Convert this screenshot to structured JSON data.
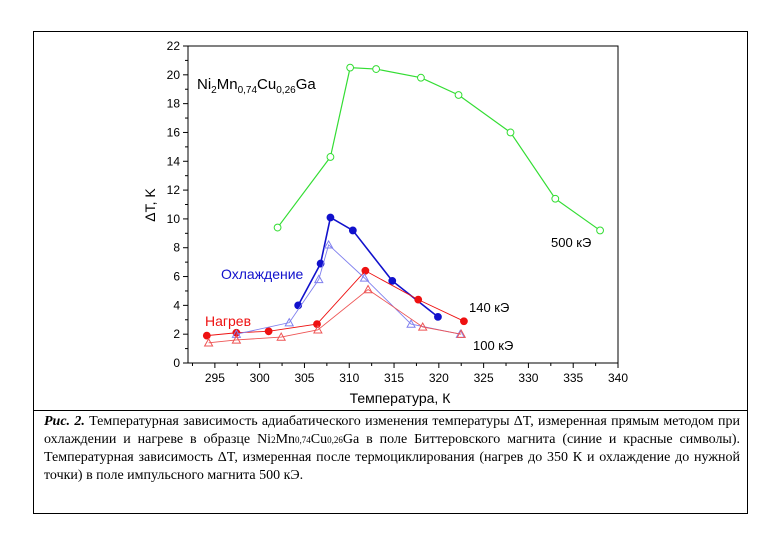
{
  "chart_data": {
    "type": "line",
    "xlabel": "Температура, К",
    "ylabel": "ΔT, K",
    "xlim": [
      292,
      340
    ],
    "ylim": [
      0,
      22
    ],
    "xticks": [
      295,
      300,
      305,
      310,
      315,
      320,
      325,
      330,
      335,
      340
    ],
    "yticks": [
      0,
      2,
      4,
      6,
      8,
      10,
      12,
      14,
      16,
      18,
      20,
      22
    ],
    "grid": false,
    "formula": {
      "base": "Ni",
      "parts": [
        {
          "t": "2",
          "sub": true
        },
        {
          "t": "Mn",
          "sub": false
        },
        {
          "t": "0,74",
          "sub": true
        },
        {
          "t": "Cu",
          "sub": false
        },
        {
          "t": "0,26",
          "sub": true
        },
        {
          "t": "Ga",
          "sub": false
        }
      ]
    },
    "series": [
      {
        "name": "500 кЭ",
        "color": "#33dd33",
        "marker": "circle-open",
        "stroke_width": 1.2,
        "x": [
          302,
          307.9,
          310.1,
          313,
          318,
          322.2,
          328,
          333,
          338
        ],
        "y": [
          9.4,
          14.3,
          20.5,
          20.4,
          19.8,
          18.6,
          16.0,
          11.4,
          9.2
        ]
      },
      {
        "name": "Охлаждение",
        "color": "#1111cc",
        "marker": "circle-filled",
        "stroke_width": 1.6,
        "x": [
          304.3,
          306.8,
          307.9,
          310.4,
          314.8,
          319.9
        ],
        "y": [
          4.0,
          6.9,
          10.1,
          9.2,
          5.7,
          3.2
        ]
      },
      {
        "name": "Нагрев",
        "color": "#ee1111",
        "marker": "circle-filled",
        "stroke_width": 0.9,
        "x": [
          294.1,
          297.4,
          301.0,
          306.4,
          311.8,
          317.7,
          322.8
        ],
        "y": [
          1.9,
          2.1,
          2.2,
          2.7,
          6.4,
          4.4,
          2.9
        ]
      },
      {
        "name": "140 кЭ",
        "color": "#8080ee",
        "marker": "triangle-open",
        "stroke_width": 0.9,
        "x": [
          297.4,
          303.3,
          306.6,
          307.7,
          311.7,
          316.9,
          322.4
        ],
        "y": [
          2.0,
          2.8,
          5.8,
          8.2,
          5.9,
          2.7,
          2.0
        ]
      },
      {
        "name": "100 кЭ",
        "color": "#ee5555",
        "marker": "triangle-open",
        "stroke_width": 0.9,
        "x": [
          294.3,
          297.4,
          302.4,
          306.5,
          312.1,
          318.2,
          322.5
        ],
        "y": [
          1.4,
          1.6,
          1.8,
          2.3,
          5.1,
          2.5,
          2.0
        ]
      }
    ],
    "annotations": [
      {
        "text": "500 кЭ",
        "color": "#000000"
      },
      {
        "text": "140 кЭ",
        "color": "#000000"
      },
      {
        "text": "100 кЭ",
        "color": "#000000"
      },
      {
        "text": "Охлаждение",
        "color": "#1111cc"
      },
      {
        "text": "Нагрев",
        "color": "#ee1111"
      }
    ]
  },
  "caption": {
    "lead": "Рис. 2.",
    "p1": " Температурная зависимость адиабатического изменения температуры ΔT, измеренная прямым методом при охлаждении и нагреве в образце ",
    "f1": "Ni",
    "f1s": "2",
    "f2": "Mn",
    "f2s": "0,74",
    "f3": "Cu",
    "f3s": "0,26",
    "f4": "Ga",
    "p2": " в поле Биттеровского магнита (синие и красные символы). Температурная зависимость ΔT, измеренная после термоциклирования (нагрев до 350 К и охлаждение до нужной точки) в поле импульсного магнита 500 кЭ."
  }
}
